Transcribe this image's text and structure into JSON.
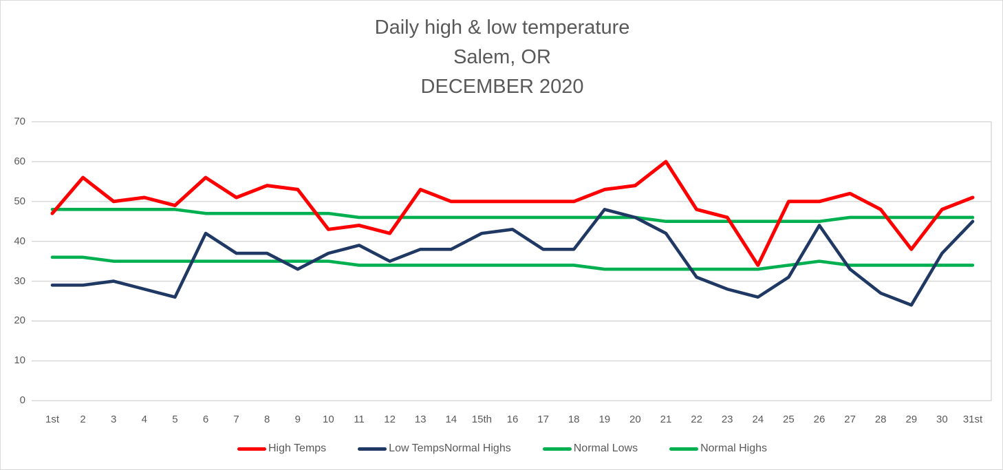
{
  "title": {
    "line1": "Daily high & low temperature",
    "line2": "Salem, OR",
    "line3": "DECEMBER 2020"
  },
  "colors": {
    "high_temps": "#FF0000",
    "low_temps": "#1F3864",
    "normals_green": "#00B050",
    "text_gray": "#595959",
    "gridline": "#D6D6D6"
  },
  "chart_data": {
    "type": "line",
    "title": "Daily high & low temperature Salem, OR DECEMBER 2020",
    "xlabel": "",
    "ylabel": "",
    "ylim": [
      0,
      70
    ],
    "yticks": [
      0,
      10,
      20,
      30,
      40,
      50,
      60,
      70
    ],
    "grid": "horizontal",
    "legend_position": "bottom",
    "x_categories": [
      "1st",
      "2",
      "3",
      "4",
      "5",
      "6",
      "7",
      "8",
      "9",
      "10",
      "11",
      "12",
      "13",
      "14",
      "15th",
      "16",
      "17",
      "18",
      "19",
      "20",
      "21",
      "22",
      "23",
      "24",
      "25",
      "26",
      "27",
      "28",
      "29",
      "30",
      "31st"
    ],
    "series": [
      {
        "name": "Normal Lows",
        "color": "#00B050",
        "width": 4.6,
        "values": [
          36,
          36,
          35,
          35,
          35,
          35,
          35,
          35,
          35,
          35,
          34,
          34,
          34,
          34,
          34,
          34,
          34,
          34,
          33,
          33,
          33,
          33,
          33,
          33,
          34,
          35,
          34,
          34,
          34,
          34,
          34
        ]
      },
      {
        "name": "Normal Highs",
        "color": "#00B050",
        "width": 4.6,
        "values": [
          48,
          48,
          48,
          48,
          48,
          47,
          47,
          47,
          47,
          47,
          46,
          46,
          46,
          46,
          46,
          46,
          46,
          46,
          46,
          46,
          45,
          45,
          45,
          45,
          45,
          45,
          46,
          46,
          46,
          46,
          46
        ]
      },
      {
        "name": "Low Temps",
        "color": "#1F3864",
        "width": 4.6,
        "values": [
          29,
          29,
          30,
          28,
          26,
          42,
          37,
          37,
          33,
          37,
          39,
          35,
          38,
          38,
          42,
          43,
          38,
          38,
          48,
          46,
          42,
          31,
          28,
          26,
          31,
          44,
          33,
          27,
          24,
          37,
          45
        ]
      },
      {
        "name": "High Temps",
        "color": "#FF0000",
        "width": 5,
        "values": [
          47,
          56,
          50,
          51,
          49,
          56,
          51,
          54,
          53,
          43,
          44,
          42,
          53,
          50,
          50,
          50,
          50,
          50,
          53,
          54,
          60,
          48,
          46,
          34,
          50,
          50,
          52,
          48,
          38,
          48,
          51
        ]
      }
    ],
    "legend_items": [
      {
        "label": "High Temps",
        "swatch": "#FF0000"
      },
      {
        "label": "Low Temps",
        "swatch": "#1F3864"
      },
      {
        "label": "Normal Highs",
        "swatch": null
      },
      {
        "label": "Normal Lows",
        "swatch": "#00B050"
      },
      {
        "label": "Normal Highs",
        "swatch": "#00B050"
      }
    ]
  }
}
